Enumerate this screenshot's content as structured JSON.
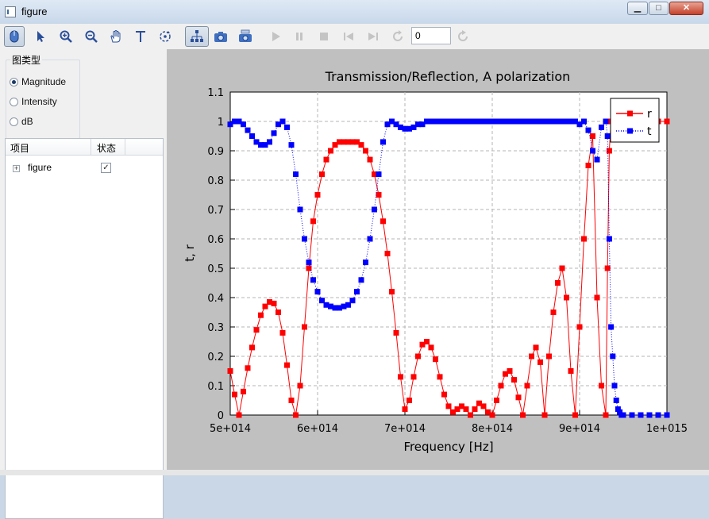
{
  "window": {
    "title": "figure"
  },
  "titlebar_buttons": {
    "minimize": "▁",
    "maximize": "□",
    "close": "✕"
  },
  "toolbar": {
    "buttons": [
      {
        "name": "mouse-mode-icon",
        "pressed": true,
        "enabled": true
      },
      {
        "name": "pointer-icon",
        "pressed": false,
        "enabled": true
      },
      {
        "name": "zoom-in-icon",
        "pressed": false,
        "enabled": true
      },
      {
        "name": "zoom-out-icon",
        "pressed": false,
        "enabled": true
      },
      {
        "name": "pan-hand-icon",
        "pressed": false,
        "enabled": true
      },
      {
        "name": "text-tool-icon",
        "pressed": false,
        "enabled": true
      },
      {
        "name": "rotate-icon",
        "pressed": false,
        "enabled": true
      },
      {
        "name": "data-tree-icon",
        "pressed": true,
        "enabled": true
      },
      {
        "name": "camera-icon",
        "pressed": false,
        "enabled": true
      },
      {
        "name": "camera-copy-icon",
        "pressed": false,
        "enabled": true
      },
      {
        "name": "play-icon",
        "pressed": false,
        "enabled": false
      },
      {
        "name": "pause-icon",
        "pressed": false,
        "enabled": false
      },
      {
        "name": "stop-icon",
        "pressed": false,
        "enabled": false
      },
      {
        "name": "skip-back-icon",
        "pressed": false,
        "enabled": false
      },
      {
        "name": "skip-forward-icon",
        "pressed": false,
        "enabled": false
      },
      {
        "name": "refresh-icon",
        "pressed": false,
        "enabled": false
      }
    ],
    "frame_value": "0",
    "reload": {
      "name": "reload-icon",
      "enabled": false
    }
  },
  "panel": {
    "group_title": "图类型",
    "options": [
      {
        "label": "Magnitude",
        "selected": true
      },
      {
        "label": "Intensity",
        "selected": false
      },
      {
        "label": "dB",
        "selected": false
      }
    ],
    "tree": {
      "col_item": "项目",
      "col_state": "状态",
      "rows": [
        {
          "label": "figure",
          "checked": true,
          "expander": "+",
          "check_mark": "✓"
        }
      ]
    }
  },
  "colors": {
    "r": "#ff0000",
    "t": "#0000ff",
    "plot_bg": "#c0c0c0"
  },
  "chart_data": {
    "type": "line",
    "title": "Transmission/Reflection, A polarization",
    "xlabel": "Frequency [Hz]",
    "ylabel": "t, r",
    "xlim": [
      500000000000000.0,
      1000000000000000.0
    ],
    "ylim": [
      0,
      1.1
    ],
    "xticks": [
      500000000000000.0,
      600000000000000.0,
      700000000000000.0,
      800000000000000.0,
      900000000000000.0,
      1000000000000000.0
    ],
    "xtick_labels": [
      "5e+014",
      "6e+014",
      "7e+014",
      "8e+014",
      "9e+014",
      "1e+015"
    ],
    "yticks": [
      0,
      0.1,
      0.2,
      0.3,
      0.4,
      0.5,
      0.6,
      0.7,
      0.8,
      0.9,
      1,
      1.1
    ],
    "ytick_labels": [
      "0",
      "0.1",
      "0.2",
      "0.3",
      "0.4",
      "0.5",
      "0.6",
      "0.7",
      "0.8",
      "0.9",
      "1",
      "1.1"
    ],
    "grid": true,
    "legend": "top-right",
    "series": [
      {
        "name": "r",
        "color": "#ff0000",
        "marker": "square",
        "linestyle": "solid",
        "x": [
          500000000000000.0,
          505000000000000.0,
          510000000000000.0,
          515000000000000.0,
          520000000000000.0,
          525000000000000.0,
          530000000000000.0,
          535000000000000.0,
          540000000000000.0,
          545000000000000.0,
          550000000000000.0,
          555000000000000.0,
          560000000000000.0,
          565000000000000.0,
          570000000000000.0,
          575000000000000.0,
          580000000000000.0,
          585000000000000.0,
          590000000000000.0,
          595000000000000.0,
          600000000000000.0,
          605000000000000.0,
          610000000000000.0,
          615000000000000.0,
          620000000000000.0,
          625000000000000.0,
          630000000000000.0,
          635000000000000.0,
          640000000000000.0,
          645000000000000.0,
          650000000000000.0,
          655000000000000.0,
          660000000000000.0,
          665000000000000.0,
          670000000000000.0,
          675000000000000.0,
          680000000000000.0,
          685000000000000.0,
          690000000000000.0,
          695000000000000.0,
          700000000000000.0,
          705000000000000.0,
          710000000000000.0,
          715000000000000.0,
          720000000000000.0,
          725000000000000.0,
          730000000000000.0,
          735000000000000.0,
          740000000000000.0,
          745000000000000.0,
          750000000000000.0,
          755000000000000.0,
          760000000000000.0,
          765000000000000.0,
          770000000000000.0,
          775000000000000.0,
          780000000000000.0,
          785000000000000.0,
          790000000000000.0,
          795000000000000.0,
          800000000000000.0,
          805000000000000.0,
          810000000000000.0,
          815000000000000.0,
          820000000000000.0,
          825000000000000.0,
          830000000000000.0,
          835000000000000.0,
          840000000000000.0,
          845000000000000.0,
          850000000000000.0,
          855000000000000.0,
          860000000000000.0,
          865000000000000.0,
          870000000000000.0,
          875000000000000.0,
          880000000000000.0,
          885000000000000.0,
          890000000000000.0,
          895000000000000.0,
          900000000000000.0,
          905000000000000.0,
          910000000000000.0,
          915000000000000.0,
          920000000000000.0,
          925000000000000.0,
          930000000000000.0,
          932000000000000.0,
          934000000000000.0,
          936000000000000.0,
          938000000000000.0,
          940000000000000.0,
          942000000000000.0,
          944000000000000.0,
          946000000000000.0,
          948000000000000.0,
          950000000000000.0,
          960000000000000.0,
          970000000000000.0,
          980000000000000.0,
          990000000000000.0,
          1000000000000000.0
        ],
        "y": [
          0.15,
          0.07,
          0.0,
          0.08,
          0.16,
          0.23,
          0.29,
          0.34,
          0.37,
          0.385,
          0.38,
          0.35,
          0.28,
          0.17,
          0.05,
          0.0,
          0.1,
          0.3,
          0.5,
          0.66,
          0.75,
          0.82,
          0.87,
          0.9,
          0.92,
          0.93,
          0.93,
          0.93,
          0.93,
          0.93,
          0.92,
          0.9,
          0.87,
          0.82,
          0.75,
          0.66,
          0.55,
          0.42,
          0.28,
          0.13,
          0.02,
          0.05,
          0.13,
          0.2,
          0.24,
          0.25,
          0.23,
          0.19,
          0.13,
          0.07,
          0.03,
          0.01,
          0.02,
          0.03,
          0.02,
          0.0,
          0.02,
          0.04,
          0.03,
          0.01,
          0.0,
          0.05,
          0.1,
          0.14,
          0.15,
          0.12,
          0.06,
          0.0,
          0.1,
          0.2,
          0.23,
          0.18,
          0.0,
          0.2,
          0.35,
          0.45,
          0.5,
          0.4,
          0.15,
          0.0,
          0.3,
          0.6,
          0.85,
          0.95,
          0.4,
          0.1,
          0.0,
          0.5,
          0.9,
          1.0,
          1.0,
          1.0,
          1.0,
          1.0,
          1.0,
          1.0,
          1.0,
          1.0,
          1.0,
          1.0,
          1.0,
          1.0
        ]
      },
      {
        "name": "t",
        "color": "#0000ff",
        "marker": "square",
        "linestyle": "dotted",
        "x": [
          500000000000000.0,
          505000000000000.0,
          510000000000000.0,
          515000000000000.0,
          520000000000000.0,
          525000000000000.0,
          530000000000000.0,
          535000000000000.0,
          540000000000000.0,
          545000000000000.0,
          550000000000000.0,
          555000000000000.0,
          560000000000000.0,
          565000000000000.0,
          570000000000000.0,
          575000000000000.0,
          580000000000000.0,
          585000000000000.0,
          590000000000000.0,
          595000000000000.0,
          600000000000000.0,
          605000000000000.0,
          610000000000000.0,
          615000000000000.0,
          620000000000000.0,
          625000000000000.0,
          630000000000000.0,
          635000000000000.0,
          640000000000000.0,
          645000000000000.0,
          650000000000000.0,
          655000000000000.0,
          660000000000000.0,
          665000000000000.0,
          670000000000000.0,
          675000000000000.0,
          680000000000000.0,
          685000000000000.0,
          690000000000000.0,
          695000000000000.0,
          700000000000000.0,
          705000000000000.0,
          710000000000000.0,
          715000000000000.0,
          720000000000000.0,
          725000000000000.0,
          730000000000000.0,
          735000000000000.0,
          740000000000000.0,
          745000000000000.0,
          750000000000000.0,
          755000000000000.0,
          760000000000000.0,
          765000000000000.0,
          770000000000000.0,
          775000000000000.0,
          780000000000000.0,
          785000000000000.0,
          790000000000000.0,
          795000000000000.0,
          800000000000000.0,
          805000000000000.0,
          810000000000000.0,
          815000000000000.0,
          820000000000000.0,
          825000000000000.0,
          830000000000000.0,
          835000000000000.0,
          840000000000000.0,
          845000000000000.0,
          850000000000000.0,
          855000000000000.0,
          860000000000000.0,
          865000000000000.0,
          870000000000000.0,
          875000000000000.0,
          880000000000000.0,
          885000000000000.0,
          890000000000000.0,
          895000000000000.0,
          900000000000000.0,
          905000000000000.0,
          910000000000000.0,
          915000000000000.0,
          920000000000000.0,
          925000000000000.0,
          930000000000000.0,
          932000000000000.0,
          934000000000000.0,
          936000000000000.0,
          938000000000000.0,
          940000000000000.0,
          942000000000000.0,
          944000000000000.0,
          946000000000000.0,
          948000000000000.0,
          950000000000000.0,
          960000000000000.0,
          970000000000000.0,
          980000000000000.0,
          990000000000000.0,
          1000000000000000.0
        ],
        "y": [
          0.99,
          1.0,
          1.0,
          0.99,
          0.97,
          0.95,
          0.93,
          0.92,
          0.92,
          0.93,
          0.96,
          0.99,
          1.0,
          0.98,
          0.92,
          0.82,
          0.7,
          0.6,
          0.52,
          0.46,
          0.42,
          0.39,
          0.375,
          0.37,
          0.365,
          0.365,
          0.37,
          0.375,
          0.39,
          0.42,
          0.46,
          0.52,
          0.6,
          0.7,
          0.82,
          0.93,
          0.99,
          1.0,
          0.99,
          0.98,
          0.975,
          0.975,
          0.98,
          0.99,
          0.99,
          1.0,
          1.0,
          1.0,
          1.0,
          1.0,
          1.0,
          1.0,
          1.0,
          1.0,
          1.0,
          1.0,
          1.0,
          1.0,
          1.0,
          1.0,
          1.0,
          1.0,
          1.0,
          1.0,
          1.0,
          1.0,
          1.0,
          1.0,
          1.0,
          1.0,
          1.0,
          1.0,
          1.0,
          1.0,
          1.0,
          1.0,
          1.0,
          1.0,
          1.0,
          1.0,
          0.99,
          1.0,
          0.97,
          0.9,
          0.87,
          0.98,
          1.0,
          0.95,
          0.6,
          0.3,
          0.2,
          0.1,
          0.05,
          0.02,
          0.01,
          0.0,
          0.0,
          0.0,
          0.0,
          0.0,
          0.0,
          0.0
        ]
      }
    ]
  }
}
